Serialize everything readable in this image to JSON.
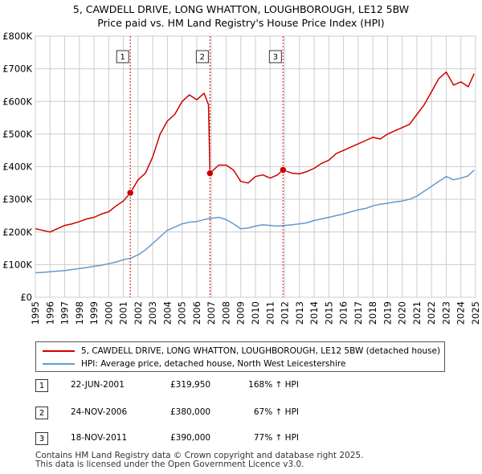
{
  "title_line1": "5, CAWDELL DRIVE, LONG WHATTON, LOUGHBOROUGH, LE12 5BW",
  "title_line2": "Price paid vs. HM Land Registry's House Price Index (HPI)",
  "colors": {
    "property": "#cc0000",
    "hpi": "#6699cc",
    "grid": "#cccccc",
    "marker_line": "#cc0000"
  },
  "chart_data": {
    "type": "line",
    "title": "5, CAWDELL DRIVE, LONG WHATTON, LOUGHBOROUGH, LE12 5BW — Price paid vs. HM Land Registry's House Price Index (HPI)",
    "xlim": [
      1995,
      2025
    ],
    "ylim": [
      0,
      800000
    ],
    "xticks": [
      1995,
      1996,
      1997,
      1998,
      1999,
      2000,
      2001,
      2002,
      2003,
      2004,
      2005,
      2006,
      2007,
      2008,
      2009,
      2010,
      2011,
      2012,
      2013,
      2014,
      2015,
      2016,
      2017,
      2018,
      2019,
      2020,
      2021,
      2022,
      2023,
      2024,
      2025
    ],
    "xtick_labels": [
      "1995",
      "1996",
      "1997",
      "1998",
      "1999",
      "2000",
      "2001",
      "2002",
      "2003",
      "2004",
      "2005",
      "2006",
      "2007",
      "2008",
      "2009",
      "2010",
      "2011",
      "2012",
      "2013",
      "2014",
      "2015",
      "2016",
      "2017",
      "2018",
      "2019",
      "2020",
      "2021",
      "2022",
      "2023",
      "2024",
      "2025"
    ],
    "yticks": [
      0,
      100000,
      200000,
      300000,
      400000,
      500000,
      600000,
      700000,
      800000
    ],
    "ytick_labels": [
      "£0",
      "£100K",
      "£200K",
      "£300K",
      "£400K",
      "£500K",
      "£600K",
      "£700K",
      "£800K"
    ],
    "grid": true,
    "series": [
      {
        "name": "5, CAWDELL DRIVE, LONG WHATTON, LOUGHBOROUGH, LE12 5BW (detached house)",
        "color": "#cc0000",
        "x": [
          1995.0,
          1995.5,
          1996.0,
          1996.5,
          1997.0,
          1997.5,
          1998.0,
          1998.5,
          1999.0,
          1999.5,
          2000.0,
          2000.5,
          2001.0,
          2001.47,
          2002.0,
          2002.5,
          2003.0,
          2003.5,
          2004.0,
          2004.5,
          2005.0,
          2005.5,
          2006.0,
          2006.5,
          2006.8,
          2006.9,
          2007.5,
          2008.0,
          2008.5,
          2009.0,
          2009.5,
          2010.0,
          2010.5,
          2011.0,
          2011.5,
          2011.88,
          2012.5,
          2013.0,
          2013.5,
          2014.0,
          2014.5,
          2015.0,
          2015.5,
          2016.0,
          2016.5,
          2017.0,
          2017.5,
          2018.0,
          2018.5,
          2019.0,
          2019.5,
          2020.0,
          2020.5,
          2021.0,
          2021.5,
          2022.0,
          2022.5,
          2023.0,
          2023.5,
          2024.0,
          2024.5,
          2024.9
        ],
        "y": [
          210000,
          205000,
          200000,
          210000,
          220000,
          225000,
          232000,
          240000,
          245000,
          255000,
          262000,
          280000,
          295000,
          319950,
          360000,
          380000,
          430000,
          500000,
          540000,
          560000,
          600000,
          620000,
          605000,
          625000,
          590000,
          380000,
          405000,
          405000,
          390000,
          355000,
          350000,
          370000,
          375000,
          365000,
          375000,
          390000,
          380000,
          378000,
          385000,
          395000,
          410000,
          420000,
          440000,
          450000,
          460000,
          470000,
          480000,
          490000,
          485000,
          500000,
          510000,
          520000,
          530000,
          560000,
          590000,
          630000,
          670000,
          690000,
          650000,
          660000,
          645000,
          685000
        ]
      },
      {
        "name": "HPI: Average price, detached house, North West Leicestershire",
        "color": "#6699cc",
        "x": [
          1995.0,
          1995.5,
          1996.0,
          1996.5,
          1997.0,
          1997.5,
          1998.0,
          1998.5,
          1999.0,
          1999.5,
          2000.0,
          2000.5,
          2001.0,
          2001.5,
          2002.0,
          2002.5,
          2003.0,
          2003.5,
          2004.0,
          2004.5,
          2005.0,
          2005.5,
          2006.0,
          2006.5,
          2007.0,
          2007.5,
          2008.0,
          2008.5,
          2009.0,
          2009.5,
          2010.0,
          2010.5,
          2011.0,
          2011.5,
          2012.0,
          2012.5,
          2013.0,
          2013.5,
          2014.0,
          2014.5,
          2015.0,
          2015.5,
          2016.0,
          2016.5,
          2017.0,
          2017.5,
          2018.0,
          2018.5,
          2019.0,
          2019.5,
          2020.0,
          2020.5,
          2021.0,
          2021.5,
          2022.0,
          2022.5,
          2023.0,
          2023.5,
          2024.0,
          2024.5,
          2024.9
        ],
        "y": [
          75000,
          76000,
          78000,
          80000,
          82000,
          85000,
          88000,
          91000,
          95000,
          98000,
          103000,
          108000,
          115000,
          120000,
          130000,
          145000,
          165000,
          185000,
          205000,
          215000,
          225000,
          230000,
          232000,
          238000,
          242000,
          245000,
          238000,
          225000,
          210000,
          212000,
          218000,
          222000,
          220000,
          218000,
          220000,
          222000,
          225000,
          228000,
          235000,
          240000,
          245000,
          250000,
          255000,
          262000,
          268000,
          272000,
          280000,
          285000,
          288000,
          292000,
          295000,
          300000,
          310000,
          325000,
          340000,
          355000,
          370000,
          360000,
          365000,
          372000,
          390000
        ]
      }
    ],
    "sales": [
      {
        "label": "1",
        "x": 2001.47,
        "y": 319950
      },
      {
        "label": "2",
        "x": 2006.9,
        "y": 380000
      },
      {
        "label": "3",
        "x": 2011.88,
        "y": 390000
      }
    ]
  },
  "legend": {
    "property_label": "5, CAWDELL DRIVE, LONG WHATTON, LOUGHBOROUGH, LE12 5BW (detached house)",
    "hpi_label": "HPI: Average price, detached house, North West Leicestershire"
  },
  "sales_table": [
    {
      "num": "1",
      "date": "22-JUN-2001",
      "price": "£319,950",
      "hpi": "168% ↑ HPI"
    },
    {
      "num": "2",
      "date": "24-NOV-2006",
      "price": "£380,000",
      "hpi": "67% ↑ HPI"
    },
    {
      "num": "3",
      "date": "18-NOV-2011",
      "price": "£390,000",
      "hpi": "77% ↑ HPI"
    }
  ],
  "footer": {
    "line1": "Contains HM Land Registry data © Crown copyright and database right 2025.",
    "line2": "This data is licensed under the Open Government Licence v3.0."
  }
}
